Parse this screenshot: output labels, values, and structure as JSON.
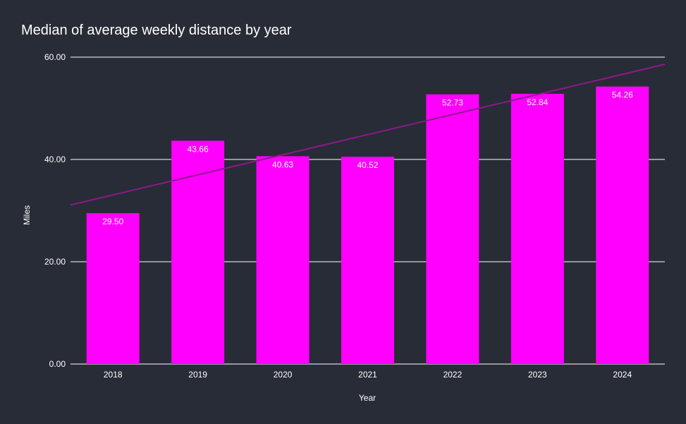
{
  "chart_data": {
    "type": "bar",
    "title": "Median of average weekly distance by year",
    "xlabel": "Year",
    "ylabel": "Miles",
    "categories": [
      "2018",
      "2019",
      "2020",
      "2021",
      "2022",
      "2023",
      "2024"
    ],
    "values": [
      29.5,
      43.66,
      40.63,
      40.52,
      52.73,
      52.84,
      54.26
    ],
    "value_labels": [
      "29.50",
      "43.66",
      "40.63",
      "40.52",
      "52.73",
      "52.84",
      "54.26"
    ],
    "ylim": [
      0,
      60
    ],
    "yticks": [
      0,
      20,
      40,
      60
    ],
    "ytick_labels": [
      "0.00",
      "20.00",
      "40.00",
      "60.00"
    ],
    "grid": true,
    "trendline": {
      "type": "linear",
      "start_value": 31.1,
      "end_value": 58.6
    },
    "colors": {
      "bar": "#ff00ff",
      "trendline": "#8b1a8b",
      "background": "#282c36",
      "grid": "#ffffff",
      "text": "#ffffff"
    }
  }
}
